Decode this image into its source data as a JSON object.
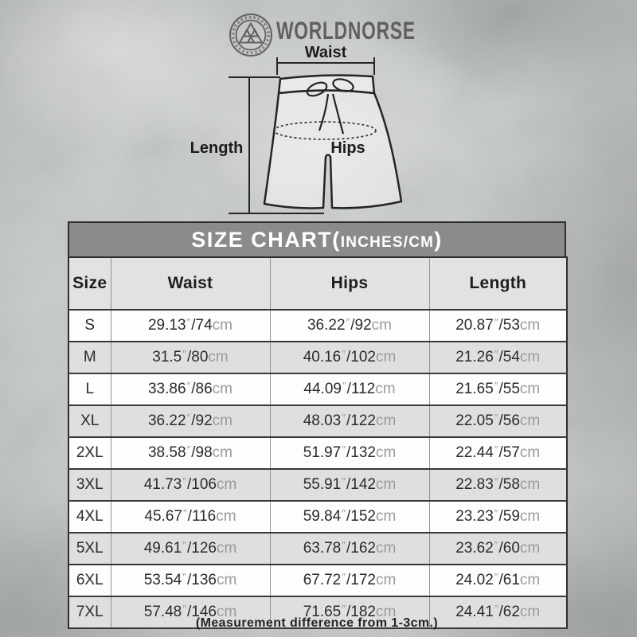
{
  "brand": {
    "name": "WORLDNORSE",
    "emblem_icon": "valknut-emblem-icon"
  },
  "diagram": {
    "waist_label": "Waist",
    "length_label": "Length",
    "hips_label": "Hips"
  },
  "banner": {
    "title_main": "SIZE CHART(",
    "title_units": "INCHES/CM",
    "title_close": ")"
  },
  "table": {
    "headers": [
      "Size",
      "Waist",
      "Hips",
      "Length"
    ],
    "unit_inch_mark": "″",
    "unit_cm": "cm",
    "rows": [
      {
        "size": "S",
        "waist": {
          "in": "29.13",
          "cm": "74"
        },
        "hips": {
          "in": "36.22",
          "cm": "92"
        },
        "length": {
          "in": "20.87",
          "cm": "53"
        }
      },
      {
        "size": "M",
        "waist": {
          "in": "31.5",
          "cm": "80"
        },
        "hips": {
          "in": "40.16",
          "cm": "102"
        },
        "length": {
          "in": "21.26",
          "cm": "54"
        }
      },
      {
        "size": "L",
        "waist": {
          "in": "33.86",
          "cm": "86"
        },
        "hips": {
          "in": "44.09",
          "cm": "112"
        },
        "length": {
          "in": "21.65",
          "cm": "55"
        }
      },
      {
        "size": "XL",
        "waist": {
          "in": "36.22",
          "cm": "92"
        },
        "hips": {
          "in": "48.03",
          "cm": "122"
        },
        "length": {
          "in": "22.05",
          "cm": "56"
        }
      },
      {
        "size": "2XL",
        "waist": {
          "in": "38.58",
          "cm": "98"
        },
        "hips": {
          "in": "51.97",
          "cm": "132"
        },
        "length": {
          "in": "22.44",
          "cm": "57"
        }
      },
      {
        "size": "3XL",
        "waist": {
          "in": "41.73",
          "cm": "106"
        },
        "hips": {
          "in": "55.91",
          "cm": "142"
        },
        "length": {
          "in": "22.83",
          "cm": "58"
        }
      },
      {
        "size": "4XL",
        "waist": {
          "in": "45.67",
          "cm": "116"
        },
        "hips": {
          "in": "59.84",
          "cm": "152"
        },
        "length": {
          "in": "23.23",
          "cm": "59"
        }
      },
      {
        "size": "5XL",
        "waist": {
          "in": "49.61",
          "cm": "126"
        },
        "hips": {
          "in": "63.78",
          "cm": "162"
        },
        "length": {
          "in": "23.62",
          "cm": "60"
        }
      },
      {
        "size": "6XL",
        "waist": {
          "in": "53.54",
          "cm": "136"
        },
        "hips": {
          "in": "67.72",
          "cm": "172"
        },
        "length": {
          "in": "24.02",
          "cm": "61"
        }
      },
      {
        "size": "7XL",
        "waist": {
          "in": "57.48",
          "cm": "146"
        },
        "hips": {
          "in": "71.65",
          "cm": "182"
        },
        "length": {
          "in": "24.41",
          "cm": "62"
        }
      }
    ]
  },
  "footer": {
    "note": "(Measurement difference from 1-3cm.)"
  },
  "colors": {
    "banner_bg": "#8b8b8b",
    "banner_border": "#2e2e2e",
    "banner_text": "#ffffff",
    "header_bg": "#e2e2e2",
    "row_bg": "#fdfdfd",
    "row_alt_bg": "#dfdfdf",
    "border_dark": "#383838",
    "border_light": "#939393",
    "text_dark": "#2b2b2b",
    "text_unit": "#9b9b9b",
    "line_color": "#262626",
    "label_color": "#1c1c1c",
    "brand_color": "#575757"
  }
}
